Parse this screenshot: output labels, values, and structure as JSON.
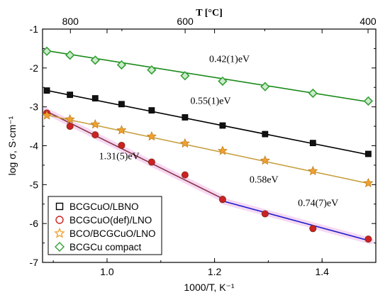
{
  "chart_data": {
    "type": "scatter",
    "xlabel": "1000/T, K⁻¹",
    "ylabel": "log σ, S·cm⁻¹",
    "top_axis_label": "T [°C]",
    "xlim": [
      0.88,
      1.5
    ],
    "ylim": [
      -7,
      -1
    ],
    "x_ticks": [
      1.0,
      1.2,
      1.4
    ],
    "x_tick_labels": [
      "1.0",
      "1.2",
      "1.4"
    ],
    "y_ticks": [
      -1,
      -2,
      -3,
      -4,
      -5,
      -6,
      -7
    ],
    "y_tick_labels": [
      "-1",
      "-2",
      "-3",
      "-4",
      "-5",
      "-6",
      "-7"
    ],
    "top_ticks_celsius": [
      800,
      600,
      400
    ],
    "top_tick_labels": [
      "800",
      "600",
      "400"
    ],
    "grid": false,
    "legend_position": "bottom-left",
    "series": [
      {
        "name": "BCGCuO/LBNO",
        "marker": "square",
        "marker_color": "#111111",
        "line_color": "#000000",
        "x": [
          0.888,
          0.931,
          0.978,
          1.027,
          1.083,
          1.145,
          1.215,
          1.294,
          1.383,
          1.486
        ],
        "y": [
          -2.58,
          -2.69,
          -2.78,
          -2.93,
          -3.09,
          -3.27,
          -3.48,
          -3.7,
          -3.93,
          -4.21
        ],
        "fit": [
          [
            0.885,
            -2.57
          ],
          [
            1.49,
            -4.24
          ]
        ]
      },
      {
        "name": "BCGCuO(def)/LNO",
        "marker": "circle",
        "marker_color": "#cc2222",
        "line_color": "#883344",
        "x": [
          0.888,
          0.931,
          0.978,
          1.027,
          1.083,
          1.145,
          1.215,
          1.294,
          1.383,
          1.486
        ],
        "y": [
          -3.16,
          -3.5,
          -3.72,
          -3.99,
          -4.42,
          -4.75,
          -5.38,
          -5.75,
          -6.13,
          -6.4
        ],
        "fit": [
          [
            0.885,
            -3.1
          ],
          [
            1.215,
            -5.36
          ]
        ],
        "fit2": [
          [
            1.215,
            -5.42
          ],
          [
            1.49,
            -6.45
          ]
        ]
      },
      {
        "name": "BCO/BCGCuO/LNO",
        "marker": "star",
        "marker_color": "#f0a030",
        "line_color": "#c8a040",
        "x": [
          0.888,
          0.931,
          0.978,
          1.027,
          1.083,
          1.145,
          1.215,
          1.294,
          1.383,
          1.486
        ],
        "y": [
          -3.22,
          -3.32,
          -3.45,
          -3.6,
          -3.76,
          -3.94,
          -4.13,
          -4.38,
          -4.65,
          -4.96
        ],
        "fit": [
          [
            0.885,
            -3.2
          ],
          [
            1.49,
            -4.98
          ]
        ]
      },
      {
        "name": "BCGCu compact",
        "marker": "diamond",
        "marker_color": "#33a033",
        "line_color": "#1a8a1a",
        "x": [
          0.888,
          0.931,
          0.978,
          1.027,
          1.083,
          1.145,
          1.215,
          1.294,
          1.383,
          1.486
        ],
        "y": [
          -1.57,
          -1.67,
          -1.8,
          -1.92,
          -2.05,
          -2.2,
          -2.34,
          -2.48,
          -2.65,
          -2.85
        ],
        "fit": [
          [
            0.885,
            -1.55
          ],
          [
            1.49,
            -2.88
          ]
        ]
      }
    ],
    "annotations": [
      {
        "text": "0.42(1)eV",
        "x": 1.19,
        "y": -1.85
      },
      {
        "text": "0.55(1)eV",
        "x": 1.155,
        "y": -2.92
      },
      {
        "text": "1.31(5)eV",
        "x": 0.985,
        "y": -4.35
      },
      {
        "text": "0.58eV",
        "x": 1.265,
        "y": -4.95
      },
      {
        "text": "0.74(7)eV",
        "x": 1.355,
        "y": -5.55
      }
    ]
  }
}
